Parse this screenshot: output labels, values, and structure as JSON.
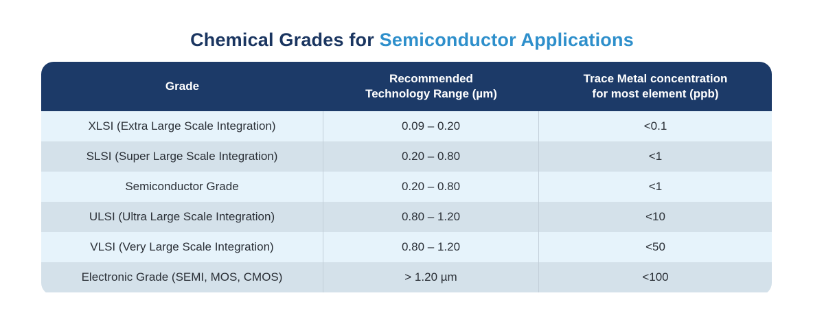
{
  "title": {
    "part1": "Chemical Grades for ",
    "part2": "Semiconductor Applications"
  },
  "table": {
    "headers": [
      "Grade",
      "Recommended\nTechnology Range (µm)",
      "Trace Metal concentration\nfor most element (ppb)"
    ],
    "rows": [
      [
        "XLSI (Extra Large Scale Integration)",
        "0.09 – 0.20",
        "<0.1"
      ],
      [
        "SLSI (Super Large Scale Integration)",
        "0.20  – 0.80",
        "<1"
      ],
      [
        "Semiconductor Grade",
        "0.20  – 0.80",
        "<1"
      ],
      [
        "ULSI (Ultra Large Scale Integration)",
        "0.80 – 1.20",
        "<10"
      ],
      [
        "VLSI (Very Large Scale Integration)",
        "0.80 – 1.20",
        "<50"
      ],
      [
        "Electronic Grade (SEMI, MOS,  CMOS)",
        "> 1.20  µm",
        "<100"
      ]
    ]
  },
  "colors": {
    "title_dark": "#1a3560",
    "title_accent": "#2e8fcb",
    "header_bg": "#1c3a68",
    "row_light": "#e6f3fb",
    "row_dark": "#d4e1ea"
  }
}
